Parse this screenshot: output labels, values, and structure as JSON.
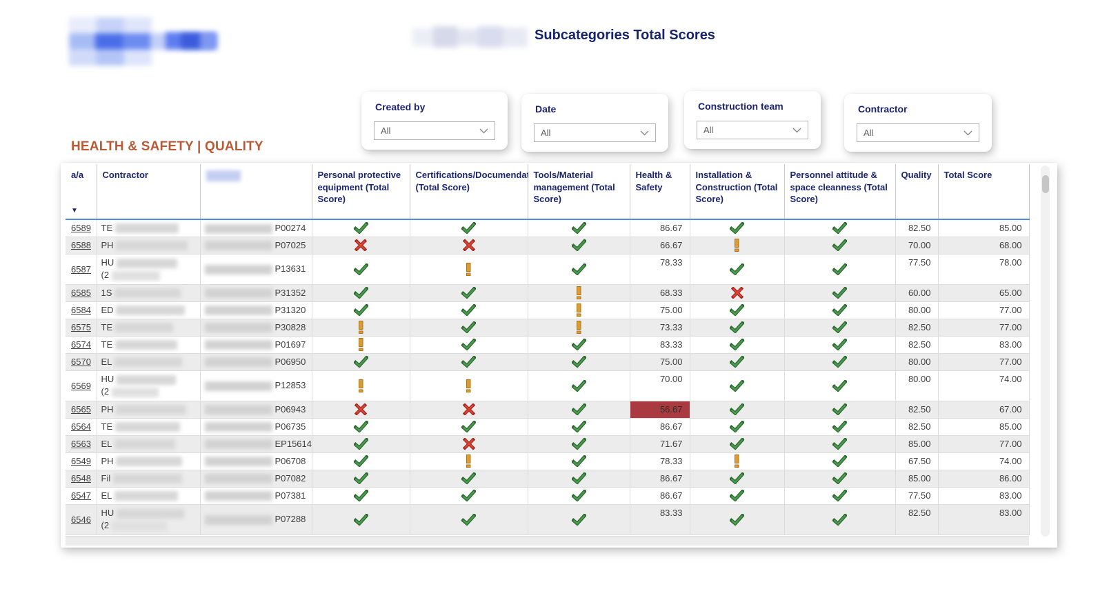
{
  "title": "Subcategories Total Scores",
  "section_title": "HEALTH & SAFETY | QUALITY",
  "filters": [
    {
      "label": "Created by",
      "value": "All"
    },
    {
      "label": "Date",
      "value": "All"
    },
    {
      "label": "Construction team",
      "value": "All"
    },
    {
      "label": "Contractor",
      "value": "All"
    }
  ],
  "table": {
    "columns": [
      {
        "key": "aa",
        "label": "a/a",
        "sorted": "descending"
      },
      {
        "key": "contractor",
        "label": "Contractor"
      },
      {
        "key": "redacted",
        "label": ""
      },
      {
        "key": "ppe",
        "label": "Personal protective equipment (Total Score)"
      },
      {
        "key": "cert",
        "label": "Certifications/Documendation/Trainings (Total Score)"
      },
      {
        "key": "tools",
        "label": "Tools/Material management (Total Score)"
      },
      {
        "key": "hs",
        "label": "Health & Safety"
      },
      {
        "key": "install",
        "label": "Installation & Construction (Total Score)"
      },
      {
        "key": "attitude",
        "label": "Personnel attitude & space cleanness (Total Score)"
      },
      {
        "key": "quality",
        "label": "Quality"
      },
      {
        "key": "total",
        "label": "Total Score"
      }
    ],
    "icon_legend": {
      "check": "green-check",
      "cross": "red-cross",
      "warn": "orange-exclamation"
    },
    "rows": [
      {
        "aa": "6589",
        "contractor_visible": "TE",
        "contractor_visible2": "",
        "code": "P00274",
        "ppe": "check",
        "cert": "check",
        "tools": "check",
        "hs": "86.67",
        "hs_flag": false,
        "install": "check",
        "attitude": "check",
        "quality": "82.50",
        "total": "85.00",
        "tall": false
      },
      {
        "aa": "6588",
        "contractor_visible": "PH",
        "contractor_visible2": "",
        "code": "P07025",
        "ppe": "cross",
        "cert": "cross",
        "tools": "check",
        "hs": "66.67",
        "hs_flag": false,
        "install": "warn",
        "attitude": "check",
        "quality": "70.00",
        "total": "68.00",
        "tall": false
      },
      {
        "aa": "6587",
        "contractor_visible": "HU",
        "contractor_visible2": "(2",
        "code": "P13631",
        "ppe": "check",
        "cert": "warn",
        "tools": "check",
        "hs": "78.33",
        "hs_flag": false,
        "install": "check",
        "attitude": "check",
        "quality": "77.50",
        "total": "78.00",
        "tall": true
      },
      {
        "aa": "6585",
        "contractor_visible": "1S",
        "contractor_visible2": "",
        "code": "P31352",
        "ppe": "check",
        "cert": "check",
        "tools": "warn",
        "hs": "68.33",
        "hs_flag": false,
        "install": "cross",
        "attitude": "check",
        "quality": "60.00",
        "total": "65.00",
        "tall": false
      },
      {
        "aa": "6584",
        "contractor_visible": "ED",
        "contractor_visible2": "",
        "code": "P31320",
        "ppe": "check",
        "cert": "check",
        "tools": "warn",
        "hs": "75.00",
        "hs_flag": false,
        "install": "check",
        "attitude": "check",
        "quality": "80.00",
        "total": "77.00",
        "tall": false
      },
      {
        "aa": "6575",
        "contractor_visible": "TE",
        "contractor_visible2": "",
        "code": "P30828",
        "ppe": "warn",
        "cert": "check",
        "tools": "warn",
        "hs": "73.33",
        "hs_flag": false,
        "install": "check",
        "attitude": "check",
        "quality": "82.50",
        "total": "77.00",
        "tall": false
      },
      {
        "aa": "6574",
        "contractor_visible": "TE",
        "contractor_visible2": "",
        "code": "P01697",
        "ppe": "warn",
        "cert": "check",
        "tools": "check",
        "hs": "83.33",
        "hs_flag": false,
        "install": "check",
        "attitude": "check",
        "quality": "82.50",
        "total": "83.00",
        "tall": false
      },
      {
        "aa": "6570",
        "contractor_visible": "EL",
        "contractor_visible2": "",
        "code": "P06950",
        "ppe": "check",
        "cert": "check",
        "tools": "check",
        "hs": "75.00",
        "hs_flag": false,
        "install": "check",
        "attitude": "check",
        "quality": "80.00",
        "total": "77.00",
        "tall": false
      },
      {
        "aa": "6569",
        "contractor_visible": "HU",
        "contractor_visible2": "(2",
        "code": "P12853",
        "ppe": "warn",
        "cert": "warn",
        "tools": "check",
        "hs": "70.00",
        "hs_flag": false,
        "install": "check",
        "attitude": "check",
        "quality": "80.00",
        "total": "74.00",
        "tall": true
      },
      {
        "aa": "6565",
        "contractor_visible": "PH",
        "contractor_visible2": "",
        "code": "P06943",
        "ppe": "cross",
        "cert": "cross",
        "tools": "check",
        "hs": "56.67",
        "hs_flag": true,
        "install": "check",
        "attitude": "check",
        "quality": "82.50",
        "total": "67.00",
        "tall": false
      },
      {
        "aa": "6564",
        "contractor_visible": "TE",
        "contractor_visible2": "",
        "code": "P06735",
        "ppe": "check",
        "cert": "check",
        "tools": "check",
        "hs": "86.67",
        "hs_flag": false,
        "install": "check",
        "attitude": "check",
        "quality": "82.50",
        "total": "85.00",
        "tall": false
      },
      {
        "aa": "6563",
        "contractor_visible": "EL",
        "contractor_visible2": "",
        "code": "EP15614",
        "ppe": "check",
        "cert": "cross",
        "tools": "check",
        "hs": "71.67",
        "hs_flag": false,
        "install": "check",
        "attitude": "check",
        "quality": "85.00",
        "total": "77.00",
        "tall": false
      },
      {
        "aa": "6549",
        "contractor_visible": "PH",
        "contractor_visible2": "",
        "code": "P06708",
        "ppe": "check",
        "cert": "warn",
        "tools": "check",
        "hs": "78.33",
        "hs_flag": false,
        "install": "warn",
        "attitude": "check",
        "quality": "67.50",
        "total": "74.00",
        "tall": false
      },
      {
        "aa": "6548",
        "contractor_visible": "Fil",
        "contractor_visible2": "",
        "code": "P07082",
        "ppe": "check",
        "cert": "check",
        "tools": "check",
        "hs": "86.67",
        "hs_flag": false,
        "install": "check",
        "attitude": "check",
        "quality": "85.00",
        "total": "86.00",
        "tall": false
      },
      {
        "aa": "6547",
        "contractor_visible": "EL",
        "contractor_visible2": "",
        "code": "P07381",
        "ppe": "check",
        "cert": "check",
        "tools": "check",
        "hs": "86.67",
        "hs_flag": false,
        "install": "check",
        "attitude": "check",
        "quality": "77.50",
        "total": "83.00",
        "tall": false
      },
      {
        "aa": "6546",
        "contractor_visible": "HU",
        "contractor_visible2": "(2",
        "code": "P07288",
        "ppe": "check",
        "cert": "check",
        "tools": "check",
        "hs": "83.33",
        "hs_flag": false,
        "install": "check",
        "attitude": "check",
        "quality": "82.50",
        "total": "83.00",
        "tall": true
      }
    ]
  },
  "colors": {
    "navy": "#1b2471",
    "terracotta": "#b95a35",
    "check_green": "#3c8a40",
    "cross_red": "#c9372c",
    "warn_orange": "#d9942b",
    "flag_red_bg": "#a93b40",
    "header_line_blue": "#4a8ed8"
  }
}
